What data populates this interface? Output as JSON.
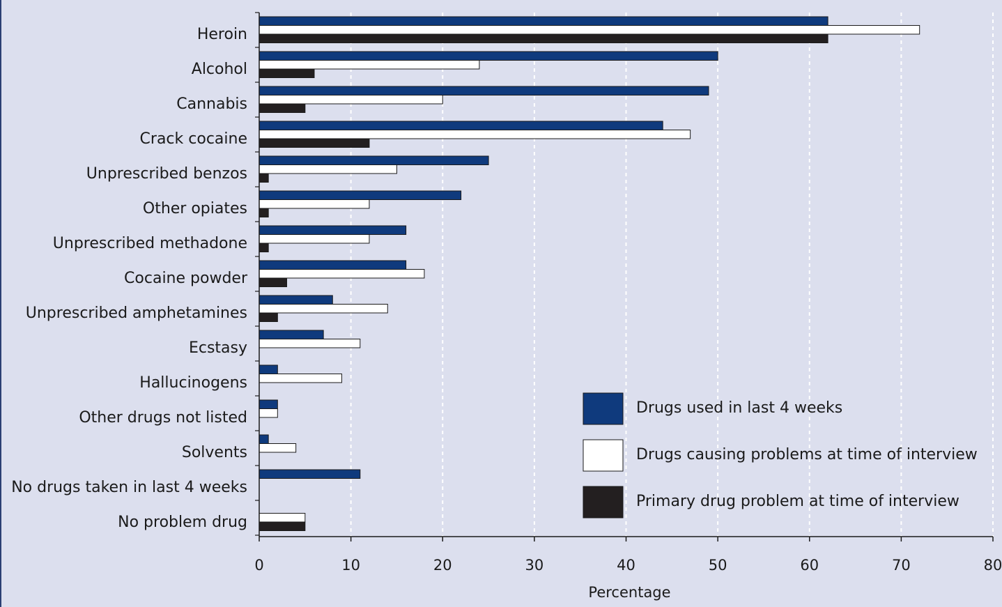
{
  "chart_data": {
    "type": "bar",
    "orientation": "horizontal",
    "categories": [
      "Heroin",
      "Alcohol",
      "Cannabis",
      "Crack cocaine",
      "Unprescribed benzos",
      "Other opiates",
      "Unprescribed methadone",
      "Cocaine powder",
      "Unprescribed amphetamines",
      "Ecstasy",
      "Hallucinogens",
      "Other drugs not listed",
      "Solvents",
      "No drugs taken in last 4 weeks",
      "No problem drug"
    ],
    "series": [
      {
        "name": "Drugs used in last 4 weeks",
        "color": "#0f3a7d",
        "values": [
          62,
          50,
          49,
          44,
          25,
          22,
          16,
          16,
          8,
          7,
          2,
          2,
          1,
          11,
          null
        ]
      },
      {
        "name": "Drugs causing problems at time of interview",
        "color": "#ffffff",
        "values": [
          72,
          24,
          20,
          47,
          15,
          12,
          12,
          18,
          14,
          11,
          9,
          2,
          4,
          null,
          5
        ]
      },
      {
        "name": "Primary drug problem at time of interview",
        "color": "#231f20",
        "values": [
          62,
          6,
          5,
          12,
          1,
          1,
          1,
          3,
          2,
          null,
          null,
          null,
          null,
          null,
          5
        ]
      }
    ],
    "xlabel": "Percentage",
    "ylabel": "",
    "xlim": [
      0,
      80
    ],
    "xticks": [
      0,
      10,
      20,
      30,
      40,
      50,
      60,
      70,
      80
    ],
    "grid": "vertical dashed white",
    "legend": "bottom-right"
  }
}
